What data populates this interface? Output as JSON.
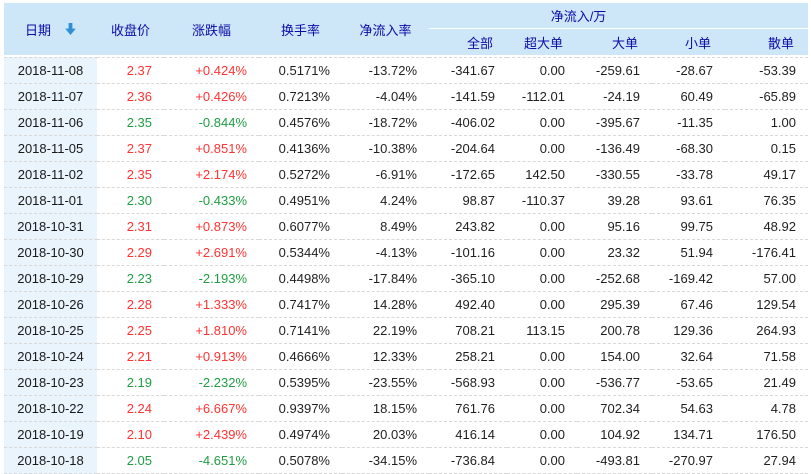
{
  "colors": {
    "up_red": "#fe3333",
    "down_green": "#1f9e43",
    "header_bg": "#cde7f8",
    "header_text": "#0b0ba8",
    "date_col_bg": "#e9f4fc",
    "sort_arrow_blue": "#2f8fd6",
    "row_divider": "#d8d8d8"
  },
  "table": {
    "header": {
      "date": "日期",
      "close": "收盘价",
      "change_pct": "涨跌幅",
      "turnover_rate": "换手率",
      "net_inflow_rate": "净流入率",
      "net_inflow_group": "净流入/万",
      "sub_all": "全部",
      "sub_super_large": "超大单",
      "sub_large": "大单",
      "sub_small": "小单",
      "sub_retail": "散单"
    },
    "sort": {
      "column": "date",
      "direction": "desc"
    },
    "rows": [
      {
        "trend": "up",
        "cells": [
          "2018-11-08",
          "2.37",
          "+0.424%",
          "0.5171%",
          "-13.72%",
          "-341.67",
          "0.00",
          "-259.61",
          "-28.67",
          "-53.39"
        ]
      },
      {
        "trend": "up",
        "cells": [
          "2018-11-07",
          "2.36",
          "+0.426%",
          "0.7213%",
          "-4.04%",
          "-141.59",
          "-112.01",
          "-24.19",
          "60.49",
          "-65.89"
        ]
      },
      {
        "trend": "down",
        "cells": [
          "2018-11-06",
          "2.35",
          "-0.844%",
          "0.4576%",
          "-18.72%",
          "-406.02",
          "0.00",
          "-395.67",
          "-11.35",
          "1.00"
        ]
      },
      {
        "trend": "up",
        "cells": [
          "2018-11-05",
          "2.37",
          "+0.851%",
          "0.4136%",
          "-10.38%",
          "-204.64",
          "0.00",
          "-136.49",
          "-68.30",
          "0.15"
        ]
      },
      {
        "trend": "up",
        "cells": [
          "2018-11-02",
          "2.35",
          "+2.174%",
          "0.5272%",
          "-6.91%",
          "-172.65",
          "142.50",
          "-330.55",
          "-33.78",
          "49.17"
        ]
      },
      {
        "trend": "down",
        "cells": [
          "2018-11-01",
          "2.30",
          "-0.433%",
          "0.4951%",
          "4.24%",
          "98.87",
          "-110.37",
          "39.28",
          "93.61",
          "76.35"
        ]
      },
      {
        "trend": "up",
        "cells": [
          "2018-10-31",
          "2.31",
          "+0.873%",
          "0.6077%",
          "8.49%",
          "243.82",
          "0.00",
          "95.16",
          "99.75",
          "48.92"
        ]
      },
      {
        "trend": "up",
        "cells": [
          "2018-10-30",
          "2.29",
          "+2.691%",
          "0.5344%",
          "-4.13%",
          "-101.16",
          "0.00",
          "23.32",
          "51.94",
          "-176.41"
        ]
      },
      {
        "trend": "down",
        "cells": [
          "2018-10-29",
          "2.23",
          "-2.193%",
          "0.4498%",
          "-17.84%",
          "-365.10",
          "0.00",
          "-252.68",
          "-169.42",
          "57.00"
        ]
      },
      {
        "trend": "up",
        "cells": [
          "2018-10-26",
          "2.28",
          "+1.333%",
          "0.7417%",
          "14.28%",
          "492.40",
          "0.00",
          "295.39",
          "67.46",
          "129.54"
        ]
      },
      {
        "trend": "up",
        "cells": [
          "2018-10-25",
          "2.25",
          "+1.810%",
          "0.7141%",
          "22.19%",
          "708.21",
          "113.15",
          "200.78",
          "129.36",
          "264.93"
        ]
      },
      {
        "trend": "up",
        "cells": [
          "2018-10-24",
          "2.21",
          "+0.913%",
          "0.4666%",
          "12.33%",
          "258.21",
          "0.00",
          "154.00",
          "32.64",
          "71.58"
        ]
      },
      {
        "trend": "down",
        "cells": [
          "2018-10-23",
          "2.19",
          "-2.232%",
          "0.5395%",
          "-23.55%",
          "-568.93",
          "0.00",
          "-536.77",
          "-53.65",
          "21.49"
        ]
      },
      {
        "trend": "up",
        "cells": [
          "2018-10-22",
          "2.24",
          "+6.667%",
          "0.9397%",
          "18.15%",
          "761.76",
          "0.00",
          "702.34",
          "54.63",
          "4.78"
        ]
      },
      {
        "trend": "up",
        "cells": [
          "2018-10-19",
          "2.10",
          "+2.439%",
          "0.4974%",
          "20.03%",
          "416.14",
          "0.00",
          "104.92",
          "134.71",
          "176.50"
        ]
      },
      {
        "trend": "down",
        "cells": [
          "2018-10-18",
          "2.05",
          "-4.651%",
          "0.5078%",
          "-34.15%",
          "-736.84",
          "0.00",
          "-493.81",
          "-270.97",
          "27.94"
        ]
      }
    ]
  }
}
